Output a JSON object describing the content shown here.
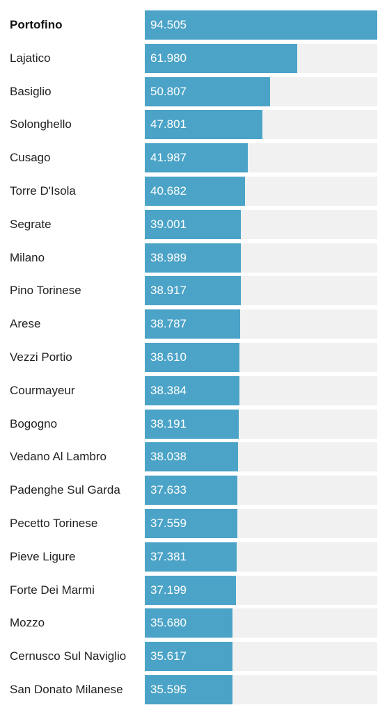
{
  "colors": {
    "bar": "#4ba3c7",
    "track": "#f1f1f1"
  },
  "chart_data": {
    "type": "bar",
    "orientation": "horizontal",
    "categories": [
      "Portofino",
      "Lajatico",
      "Basiglio",
      "Solonghello",
      "Cusago",
      "Torre D'Isola",
      "Segrate",
      "Milano",
      "Pino Torinese",
      "Arese",
      "Vezzi Portio",
      "Courmayeur",
      "Bogogno",
      "Vedano Al Lambro",
      "Padenghe Sul Garda",
      "Pecetto Torinese",
      "Pieve Ligure",
      "Forte Dei Marmi",
      "Mozzo",
      "Cernusco Sul Naviglio",
      "San Donato Milanese"
    ],
    "values": [
      94505,
      61980,
      50807,
      47801,
      41987,
      40682,
      39001,
      38989,
      38917,
      38787,
      38610,
      38384,
      38191,
      38038,
      37633,
      37559,
      37381,
      37199,
      35680,
      35617,
      35595
    ],
    "value_labels": [
      "94.505",
      "61.980",
      "50.807",
      "47.801",
      "41.987",
      "40.682",
      "39.001",
      "38.989",
      "38.917",
      "38.787",
      "38.610",
      "38.384",
      "38.191",
      "38.038",
      "37.633",
      "37.559",
      "37.381",
      "37.199",
      "35.680",
      "35.617",
      "35.595"
    ],
    "xlim": [
      0,
      94505
    ],
    "highlighted_category": "Portofino",
    "grid": false,
    "title": "",
    "xlabel": "",
    "ylabel": ""
  }
}
